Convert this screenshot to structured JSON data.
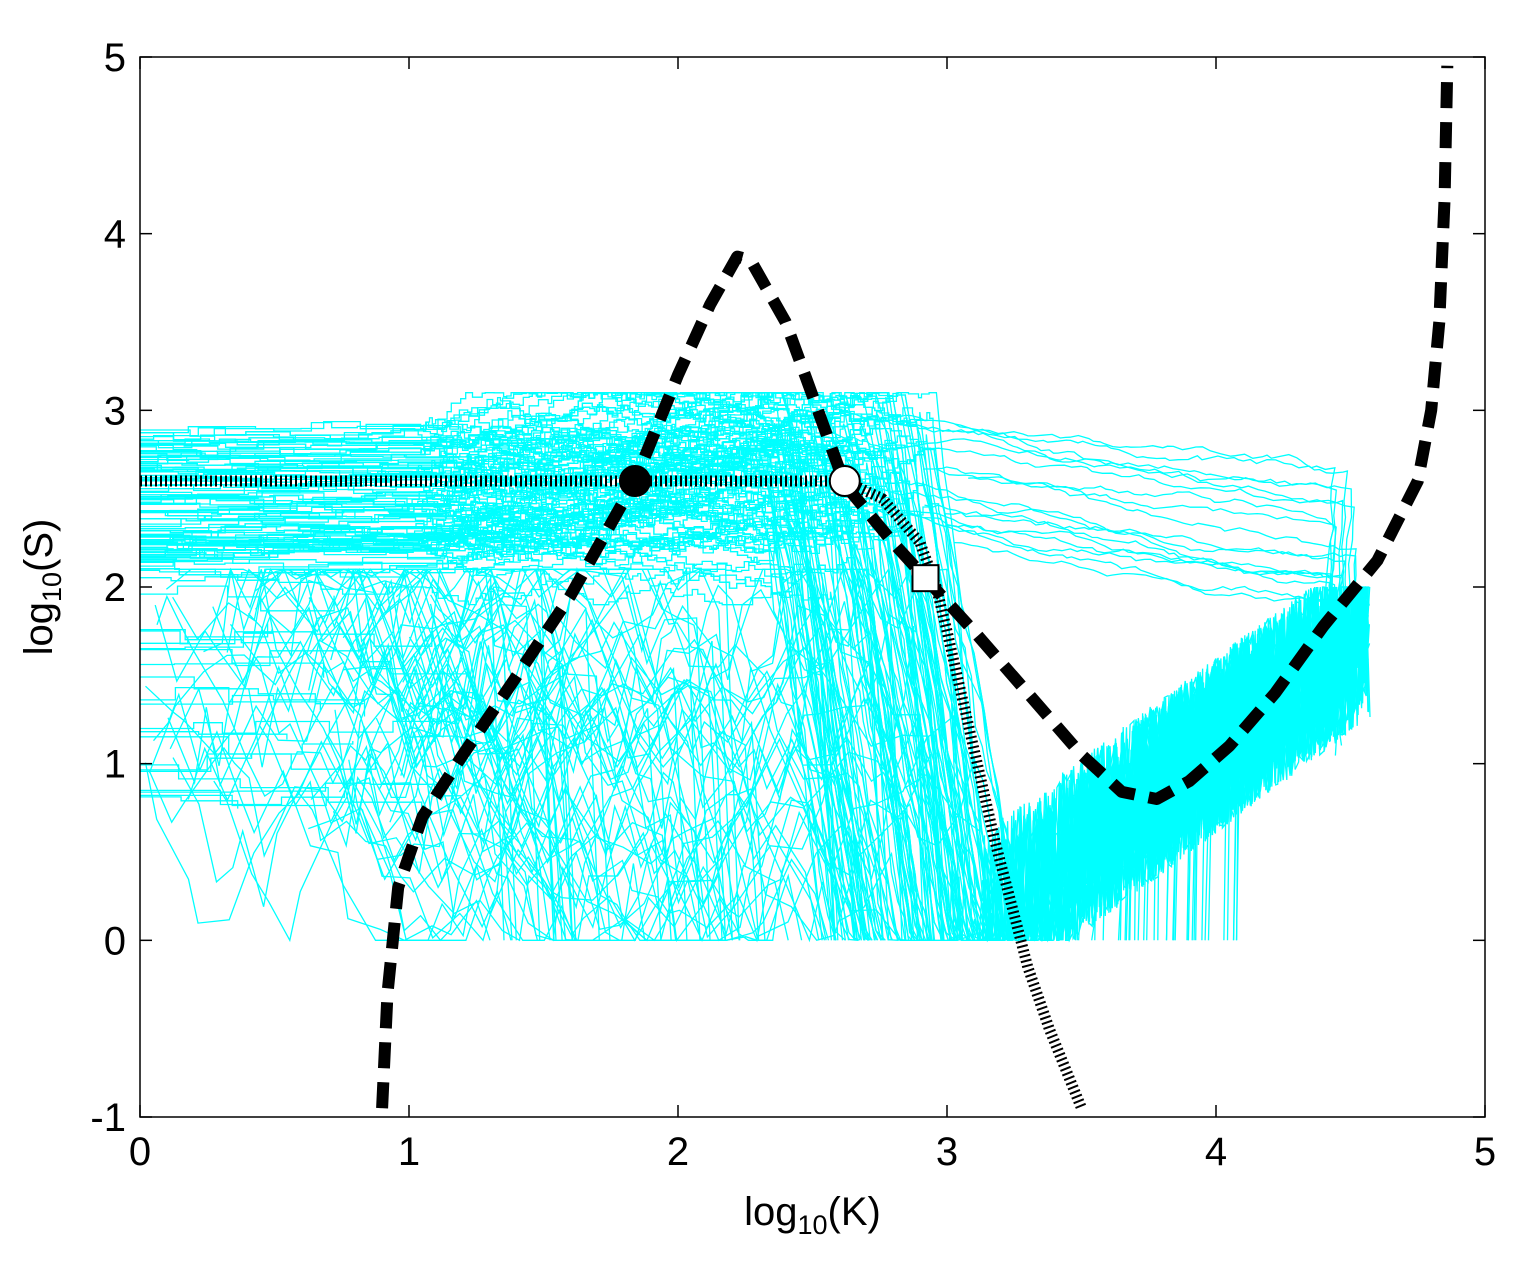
{
  "chart_data": {
    "type": "line",
    "title": "",
    "xlabel": {
      "prefix": "log",
      "sub": "10",
      "suffix": "(K)"
    },
    "ylabel": {
      "prefix": "log",
      "sub": "10",
      "suffix": "(S)"
    },
    "xlim": [
      0,
      5
    ],
    "ylim": [
      -1,
      5
    ],
    "x_ticks": [
      "0",
      "1",
      "2",
      "3",
      "4",
      "5"
    ],
    "y_ticks": [
      "-1",
      "0",
      "1",
      "2",
      "3",
      "4",
      "5"
    ],
    "grid": false,
    "legend": "none",
    "colors": {
      "trajectories": "#00ffff",
      "boundary": "#000000",
      "markers": "#000000",
      "marker_fill_open": "#ffffff"
    },
    "series": [
      {
        "style": "dashed",
        "points": [
          [
            0.9,
            -0.95
          ],
          [
            0.92,
            -0.3
          ],
          [
            0.96,
            0.3
          ],
          [
            1.05,
            0.7
          ],
          [
            1.2,
            1.05
          ],
          [
            1.38,
            1.45
          ],
          [
            1.6,
            1.95
          ],
          [
            1.84,
            2.6
          ],
          [
            2.0,
            3.2
          ],
          [
            2.12,
            3.6
          ],
          [
            2.22,
            3.87
          ],
          [
            2.27,
            3.85
          ],
          [
            2.4,
            3.5
          ],
          [
            2.52,
            3.0
          ],
          [
            2.62,
            2.58
          ],
          [
            2.8,
            2.25
          ],
          [
            2.92,
            2.05
          ],
          [
            3.1,
            1.75
          ],
          [
            3.3,
            1.4
          ],
          [
            3.5,
            1.05
          ],
          [
            3.65,
            0.84
          ],
          [
            3.78,
            0.8
          ],
          [
            3.9,
            0.9
          ],
          [
            4.05,
            1.1
          ],
          [
            4.22,
            1.4
          ],
          [
            4.4,
            1.78
          ],
          [
            4.6,
            2.15
          ],
          [
            4.75,
            2.6
          ],
          [
            4.8,
            3.0
          ],
          [
            4.83,
            3.5
          ],
          [
            4.85,
            4.2
          ],
          [
            4.86,
            4.95
          ]
        ]
      },
      {
        "style": "dotted",
        "points": [
          [
            0.0,
            2.6
          ],
          [
            1.84,
            2.6
          ],
          [
            2.62,
            2.6
          ],
          [
            2.76,
            2.5
          ],
          [
            2.9,
            2.25
          ],
          [
            2.96,
            2.0
          ],
          [
            3.0,
            1.75
          ],
          [
            3.06,
            1.35
          ],
          [
            3.12,
            0.95
          ],
          [
            3.18,
            0.55
          ],
          [
            3.24,
            0.2
          ],
          [
            3.3,
            -0.15
          ],
          [
            3.38,
            -0.5
          ],
          [
            3.5,
            -0.95
          ]
        ]
      }
    ],
    "markers": [
      {
        "shape": "filled-circle",
        "x": 1.84,
        "y": 2.6
      },
      {
        "shape": "open-circle",
        "x": 2.62,
        "y": 2.6
      },
      {
        "shape": "open-square",
        "x": 2.92,
        "y": 2.05
      }
    ]
  }
}
